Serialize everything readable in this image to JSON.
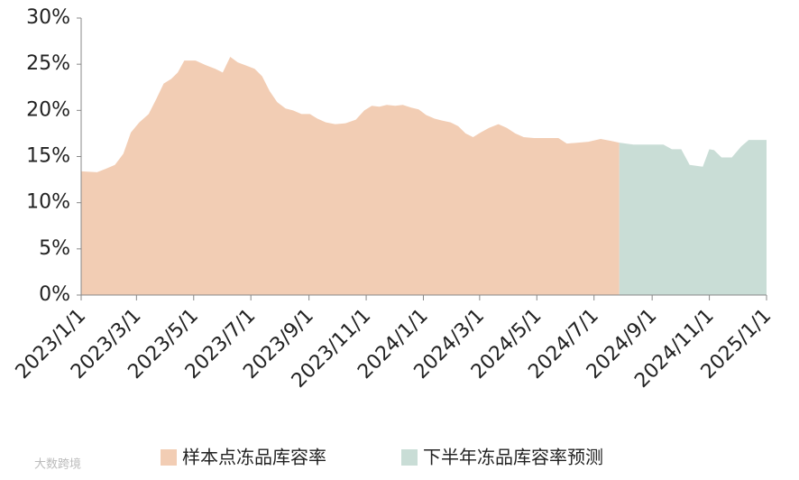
{
  "chart_data": {
    "type": "area",
    "xlim": [
      "2023/1/1",
      "2025/1/1"
    ],
    "xticks": [
      "2023/1/1",
      "2023/3/1",
      "2023/5/1",
      "2023/7/1",
      "2023/9/1",
      "2023/11/1",
      "2024/1/1",
      "2024/3/1",
      "2024/5/1",
      "2024/7/1",
      "2024/9/1",
      "2024/11/1",
      "2025/1/1"
    ],
    "ylim": [
      0,
      30
    ],
    "yticks": [
      {
        "value": 0,
        "label": "0%"
      },
      {
        "value": 5,
        "label": "5%"
      },
      {
        "value": 10,
        "label": "10%"
      },
      {
        "value": 15,
        "label": "15%"
      },
      {
        "value": 20,
        "label": "20%"
      },
      {
        "value": 25,
        "label": "25%"
      },
      {
        "value": 30,
        "label": "30%"
      }
    ],
    "series": [
      {
        "name": "样本点冻品库容率",
        "color": "#f2cdb4",
        "x": [
          "2023/1/1",
          "2023/1/18",
          "2023/1/28",
          "2023/2/6",
          "2023/2/15",
          "2023/2/23",
          "2023/3/4",
          "2023/3/14",
          "2023/3/22",
          "2023/3/30",
          "2023/4/7",
          "2023/4/14",
          "2023/4/21",
          "2023/5/3",
          "2023/5/14",
          "2023/5/24",
          "2023/6/1",
          "2023/6/9",
          "2023/6/17",
          "2023/6/25",
          "2023/7/5",
          "2023/7/13",
          "2023/7/21",
          "2023/7/29",
          "2023/8/7",
          "2023/8/15",
          "2023/8/24",
          "2023/9/2",
          "2023/9/10",
          "2023/9/19",
          "2023/9/29",
          "2023/10/10",
          "2023/10/21",
          "2023/10/30",
          "2023/11/7",
          "2023/11/15",
          "2023/11/23",
          "2023/12/2",
          "2023/12/10",
          "2023/12/19",
          "2023/12/27",
          "2024/1/4",
          "2024/1/13",
          "2024/1/21",
          "2024/1/30",
          "2024/2/7",
          "2024/2/15",
          "2024/2/23",
          "2024/3/2",
          "2024/3/11",
          "2024/3/21",
          "2024/3/30",
          "2024/4/8",
          "2024/4/17",
          "2024/4/28",
          "2024/5/10",
          "2024/5/24",
          "2024/6/2",
          "2024/6/14",
          "2024/6/25",
          "2024/7/8",
          "2024/7/19",
          "2024/7/28"
        ],
        "values": [
          13.4,
          13.3,
          13.7,
          14.1,
          15.3,
          17.6,
          18.7,
          19.6,
          21.2,
          22.9,
          23.4,
          24.1,
          25.4,
          25.4,
          24.9,
          24.5,
          24.1,
          25.8,
          25.2,
          24.9,
          24.5,
          23.7,
          22.1,
          20.9,
          20.2,
          20.0,
          19.6,
          19.6,
          19.1,
          18.7,
          18.5,
          18.6,
          19.0,
          20.0,
          20.5,
          20.4,
          20.6,
          20.5,
          20.6,
          20.3,
          20.1,
          19.5,
          19.1,
          18.9,
          18.7,
          18.3,
          17.5,
          17.1,
          17.6,
          18.1,
          18.5,
          18.1,
          17.5,
          17.1,
          17.0,
          17.0,
          17.0,
          16.4,
          16.5,
          16.6,
          16.9,
          16.7,
          16.5
        ]
      },
      {
        "name": "下半年冻品库容率预测",
        "color": "#c9ddd6",
        "x": [
          "2024/7/28",
          "2024/8/12",
          "2024/8/29",
          "2024/9/13",
          "2024/9/22",
          "2024/10/2",
          "2024/10/11",
          "2024/10/25",
          "2024/11/1",
          "2024/11/6",
          "2024/11/14",
          "2024/11/25",
          "2024/12/5",
          "2024/12/13",
          "2025/1/1"
        ],
        "values": [
          16.5,
          16.3,
          16.3,
          16.3,
          15.8,
          15.8,
          14.1,
          13.9,
          15.8,
          15.7,
          14.9,
          14.9,
          16.1,
          16.8,
          16.8
        ]
      }
    ],
    "watermark": "大数跨境"
  }
}
